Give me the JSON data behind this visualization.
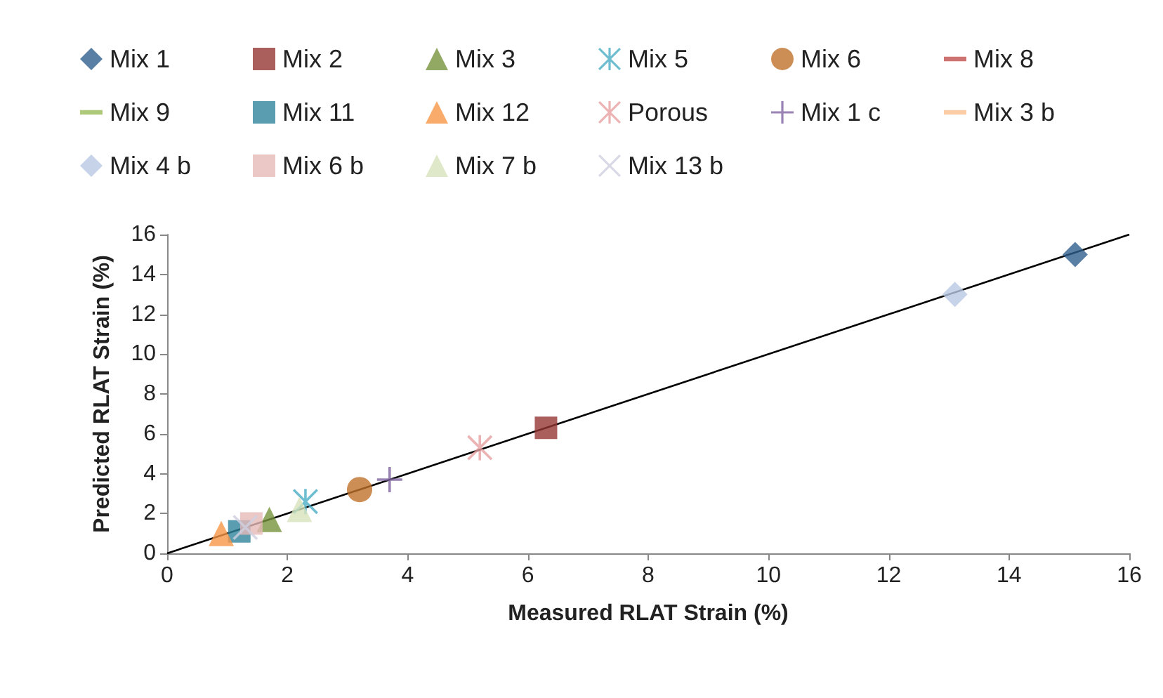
{
  "chart_data": {
    "type": "scatter",
    "xlabel": "Measured RLAT Strain (%)",
    "ylabel": "Predicted RLAT Strain (%)",
    "xlim": [
      0,
      16
    ],
    "ylim": [
      0,
      16
    ],
    "xticks": [
      0,
      2,
      4,
      6,
      8,
      10,
      12,
      14,
      16
    ],
    "yticks": [
      0,
      2,
      4,
      6,
      8,
      10,
      12,
      14,
      16
    ],
    "grid": false,
    "legend": "top",
    "series": [
      {
        "name": "Mix 1",
        "color": "#2f5f8f",
        "marker": "diamond",
        "x": [
          15.1
        ],
        "values": [
          15.0
        ]
      },
      {
        "name": "Mix 2",
        "color": "#953735",
        "marker": "square",
        "x": [
          6.3
        ],
        "values": [
          6.3
        ]
      },
      {
        "name": "Mix 3",
        "color": "#77933c",
        "marker": "triangle",
        "x": [
          1.7
        ],
        "values": [
          1.7
        ]
      },
      {
        "name": "Mix 5",
        "color": "#4bacc6",
        "marker": "cross",
        "x": [
          2.3
        ],
        "values": [
          2.6
        ]
      },
      {
        "name": "Mix 6",
        "color": "#c0722a",
        "marker": "circle",
        "x": [
          3.2
        ],
        "values": [
          3.2
        ]
      },
      {
        "name": "Mix 8",
        "color": "#c0504d",
        "marker": "dash",
        "x": [
          null
        ],
        "values": [
          null
        ]
      },
      {
        "name": "Mix 9",
        "color": "#9bbb59",
        "marker": "dash",
        "x": [
          null
        ],
        "values": [
          null
        ]
      },
      {
        "name": "Mix 11",
        "color": "#31859c",
        "marker": "square",
        "x": [
          1.2
        ],
        "values": [
          1.1
        ]
      },
      {
        "name": "Mix 12",
        "color": "#f79646",
        "marker": "triangle",
        "x": [
          0.9
        ],
        "values": [
          1.0
        ]
      },
      {
        "name": "Porous",
        "color": "#e6a0a0",
        "marker": "cross",
        "x": [
          5.2
        ],
        "values": [
          5.3
        ]
      },
      {
        "name": "Mix 1 c",
        "color": "#8064a2",
        "marker": "plus",
        "x": [
          3.7
        ],
        "values": [
          3.7
        ]
      },
      {
        "name": "Mix 3 b",
        "color": "#fac090",
        "marker": "dash",
        "x": [
          null
        ],
        "values": [
          null
        ]
      },
      {
        "name": "Mix 4 b",
        "color": "#b9c8e2",
        "marker": "diamond",
        "x": [
          13.1
        ],
        "values": [
          13.0
        ]
      },
      {
        "name": "Mix 6 b",
        "color": "#e6b9b8",
        "marker": "square",
        "x": [
          1.4
        ],
        "values": [
          1.5
        ]
      },
      {
        "name": "Mix 7 b",
        "color": "#d7e4bd",
        "marker": "triangle",
        "x": [
          2.2
        ],
        "values": [
          2.2
        ]
      },
      {
        "name": "Mix 13 b",
        "color": "#d0d0e0",
        "marker": "x",
        "x": [
          1.3
        ],
        "values": [
          1.3
        ]
      },
      {
        "type": "line",
        "color": "#000000",
        "marker": "none",
        "x": [
          0,
          16
        ],
        "values": [
          0,
          16
        ]
      }
    ]
  }
}
